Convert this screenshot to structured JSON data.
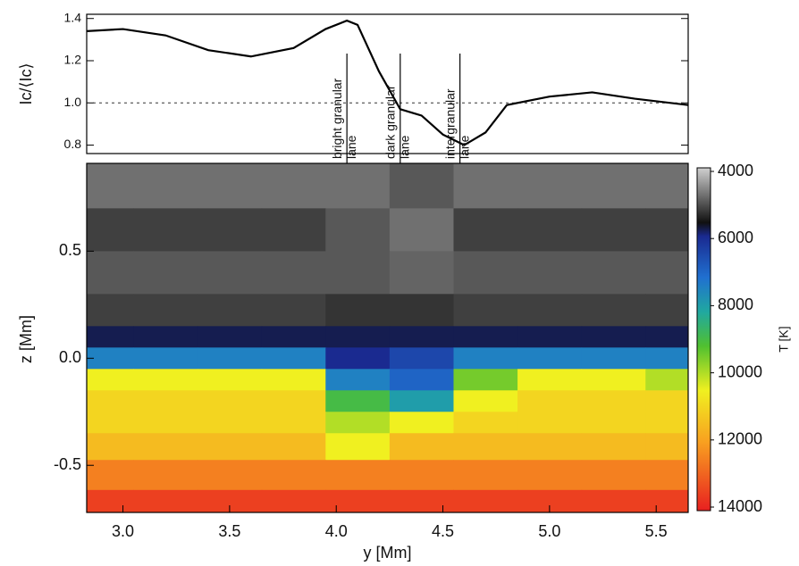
{
  "chart_data": [
    {
      "type": "line",
      "ylabel": "Ic/⟨Ic⟩",
      "x": [
        2.83,
        3.0,
        3.2,
        3.4,
        3.6,
        3.8,
        3.95,
        4.05,
        4.1,
        4.2,
        4.3,
        4.4,
        4.5,
        4.6,
        4.7,
        4.8,
        5.0,
        5.2,
        5.4,
        5.65
      ],
      "series": [
        {
          "color": "#000000",
          "values": [
            1.34,
            1.35,
            1.32,
            1.25,
            1.22,
            1.26,
            1.35,
            1.39,
            1.37,
            1.15,
            0.97,
            0.94,
            0.85,
            0.8,
            0.86,
            0.99,
            1.03,
            1.05,
            1.02,
            0.99
          ]
        }
      ],
      "xlim": [
        2.83,
        5.65
      ],
      "ylim": [
        0.76,
        1.42
      ],
      "yticks": [
        0.8,
        {
          "value": 1,
          "label": "1.0"
        },
        1.2,
        1.4
      ],
      "reference_line": 1,
      "annotations": [
        {
          "lines": [
            "bright granular",
            "lane"
          ],
          "x": 4.05
        },
        {
          "lines": [
            "dark granular",
            "lane"
          ],
          "x": 4.3
        },
        {
          "lines": [
            "intergranular",
            "lane"
          ],
          "x": 4.58
        }
      ]
    },
    {
      "type": "heatmap",
      "xlabel": "y [Mm]",
      "ylabel": "z [Mm]",
      "x": [
        2.9,
        3.2,
        3.5,
        3.8,
        4.1,
        4.4,
        4.7,
        5.0,
        5.3,
        5.6
      ],
      "z": [
        0.8,
        0.6,
        0.4,
        0.2,
        0.1,
        0.0,
        -0.1,
        -0.2,
        -0.3,
        -0.4,
        -0.55,
        -0.68
      ],
      "values": [
        [
          4800,
          4800,
          4800,
          4800,
          4800,
          5000,
          4800,
          4800,
          4800,
          4800
        ],
        [
          5200,
          5200,
          5200,
          5200,
          5000,
          4800,
          5200,
          5200,
          5200,
          5200
        ],
        [
          5000,
          5000,
          5000,
          5000,
          5000,
          4900,
          5000,
          5000,
          5000,
          5000
        ],
        [
          5200,
          5200,
          5200,
          5200,
          5300,
          5300,
          5200,
          5200,
          5200,
          5200
        ],
        [
          5800,
          5800,
          5800,
          5800,
          5800,
          5800,
          5800,
          5800,
          5800,
          5800
        ],
        [
          7500,
          7500,
          7500,
          7500,
          6000,
          6500,
          7500,
          7500,
          7500,
          7500
        ],
        [
          10500,
          10500,
          10500,
          10500,
          7500,
          7000,
          9500,
          10500,
          10500,
          10000
        ],
        [
          11000,
          11000,
          11000,
          11000,
          9000,
          8000,
          10500,
          11000,
          11000,
          11000
        ],
        [
          11000,
          11000,
          11000,
          11000,
          10000,
          10500,
          11000,
          11000,
          11000,
          11000
        ],
        [
          11500,
          11500,
          11500,
          11500,
          10500,
          11500,
          11500,
          11500,
          11500,
          11500
        ],
        [
          12500,
          12500,
          12500,
          12500,
          12500,
          12500,
          12500,
          12500,
          12500,
          12500
        ],
        [
          13500,
          13500,
          13500,
          13500,
          13500,
          13500,
          13500,
          13500,
          13500,
          13500
        ]
      ],
      "xlim": [
        2.83,
        5.65
      ],
      "ylim": [
        -0.72,
        0.91
      ],
      "xticks": [
        {
          "value": 3,
          "label": "3.0"
        },
        3.5,
        {
          "value": 4,
          "label": "4.0"
        },
        4.5,
        {
          "value": 5,
          "label": "5.0"
        },
        5.5
      ],
      "yticks": [
        -0.5,
        {
          "value": 0,
          "label": "0.0"
        },
        0.5
      ],
      "colorbar": {
        "label": "T [K]",
        "lim": [
          4000,
          14000
        ],
        "ticks": [
          4000,
          6000,
          8000,
          10000,
          12000,
          14000
        ],
        "colormap": [
          {
            "value": 4000,
            "color": "#d0d0d0"
          },
          {
            "value": 5600,
            "color": "#101010"
          },
          {
            "value": 6000,
            "color": "#1a2a90"
          },
          {
            "value": 7200,
            "color": "#2070d0"
          },
          {
            "value": 8200,
            "color": "#20a8a0"
          },
          {
            "value": 9200,
            "color": "#50c030"
          },
          {
            "value": 10500,
            "color": "#f0f020"
          },
          {
            "value": 12000,
            "color": "#f8a020"
          },
          {
            "value": 14000,
            "color": "#e82020"
          }
        ]
      }
    }
  ]
}
